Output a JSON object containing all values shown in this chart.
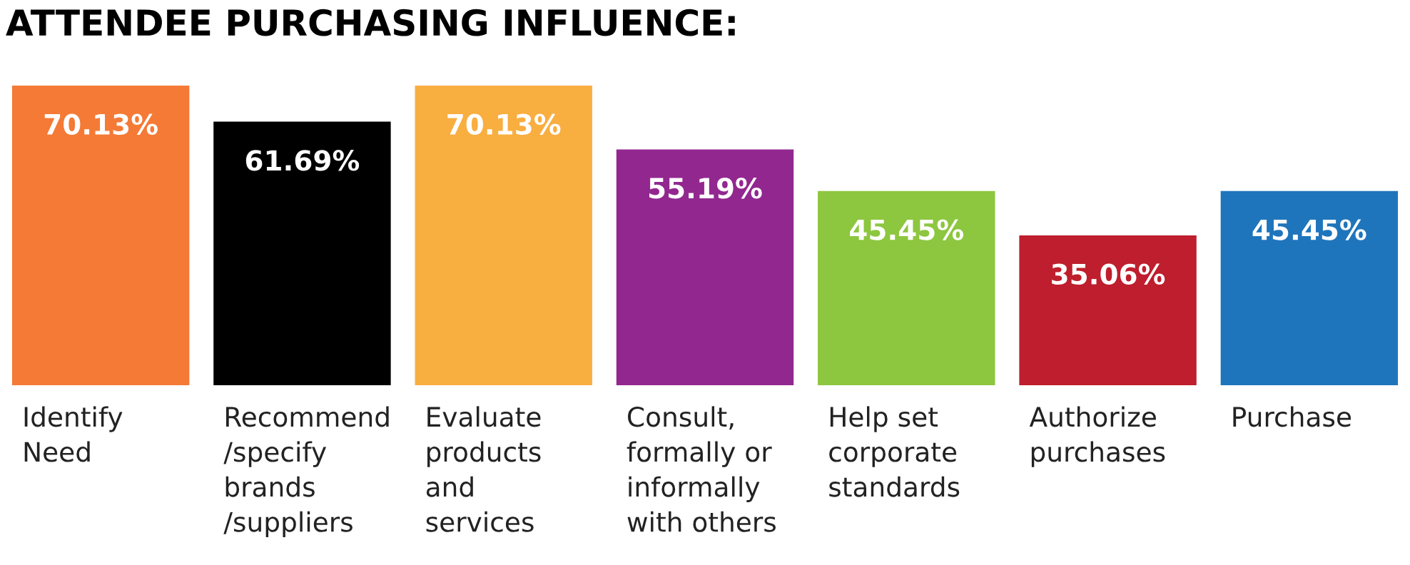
{
  "chart_data": {
    "type": "bar",
    "title": "ATTENDEE PURCHASING INFLUENCE:",
    "categories": [
      "Identify\nNeed",
      "Recommend\n/specify\nbrands\n/suppliers",
      "Evaluate\nproducts\nand\nservices",
      "Consult,\nformally or\ninformally\nwith others",
      "Help set\ncorporate\nstandards",
      "Authorize\npurchases",
      "Purchase"
    ],
    "values": [
      70.13,
      61.69,
      70.13,
      55.19,
      45.45,
      35.06,
      45.45
    ],
    "value_labels": [
      "70.13%",
      "61.69%",
      "70.13%",
      "55.19%",
      "45.45%",
      "35.06%",
      "45.45%"
    ],
    "colors": [
      "#f47a36",
      "#000000",
      "#f9ae40",
      "#92278f",
      "#8dc63f",
      "#be1e2d",
      "#1f75bc"
    ]
  }
}
